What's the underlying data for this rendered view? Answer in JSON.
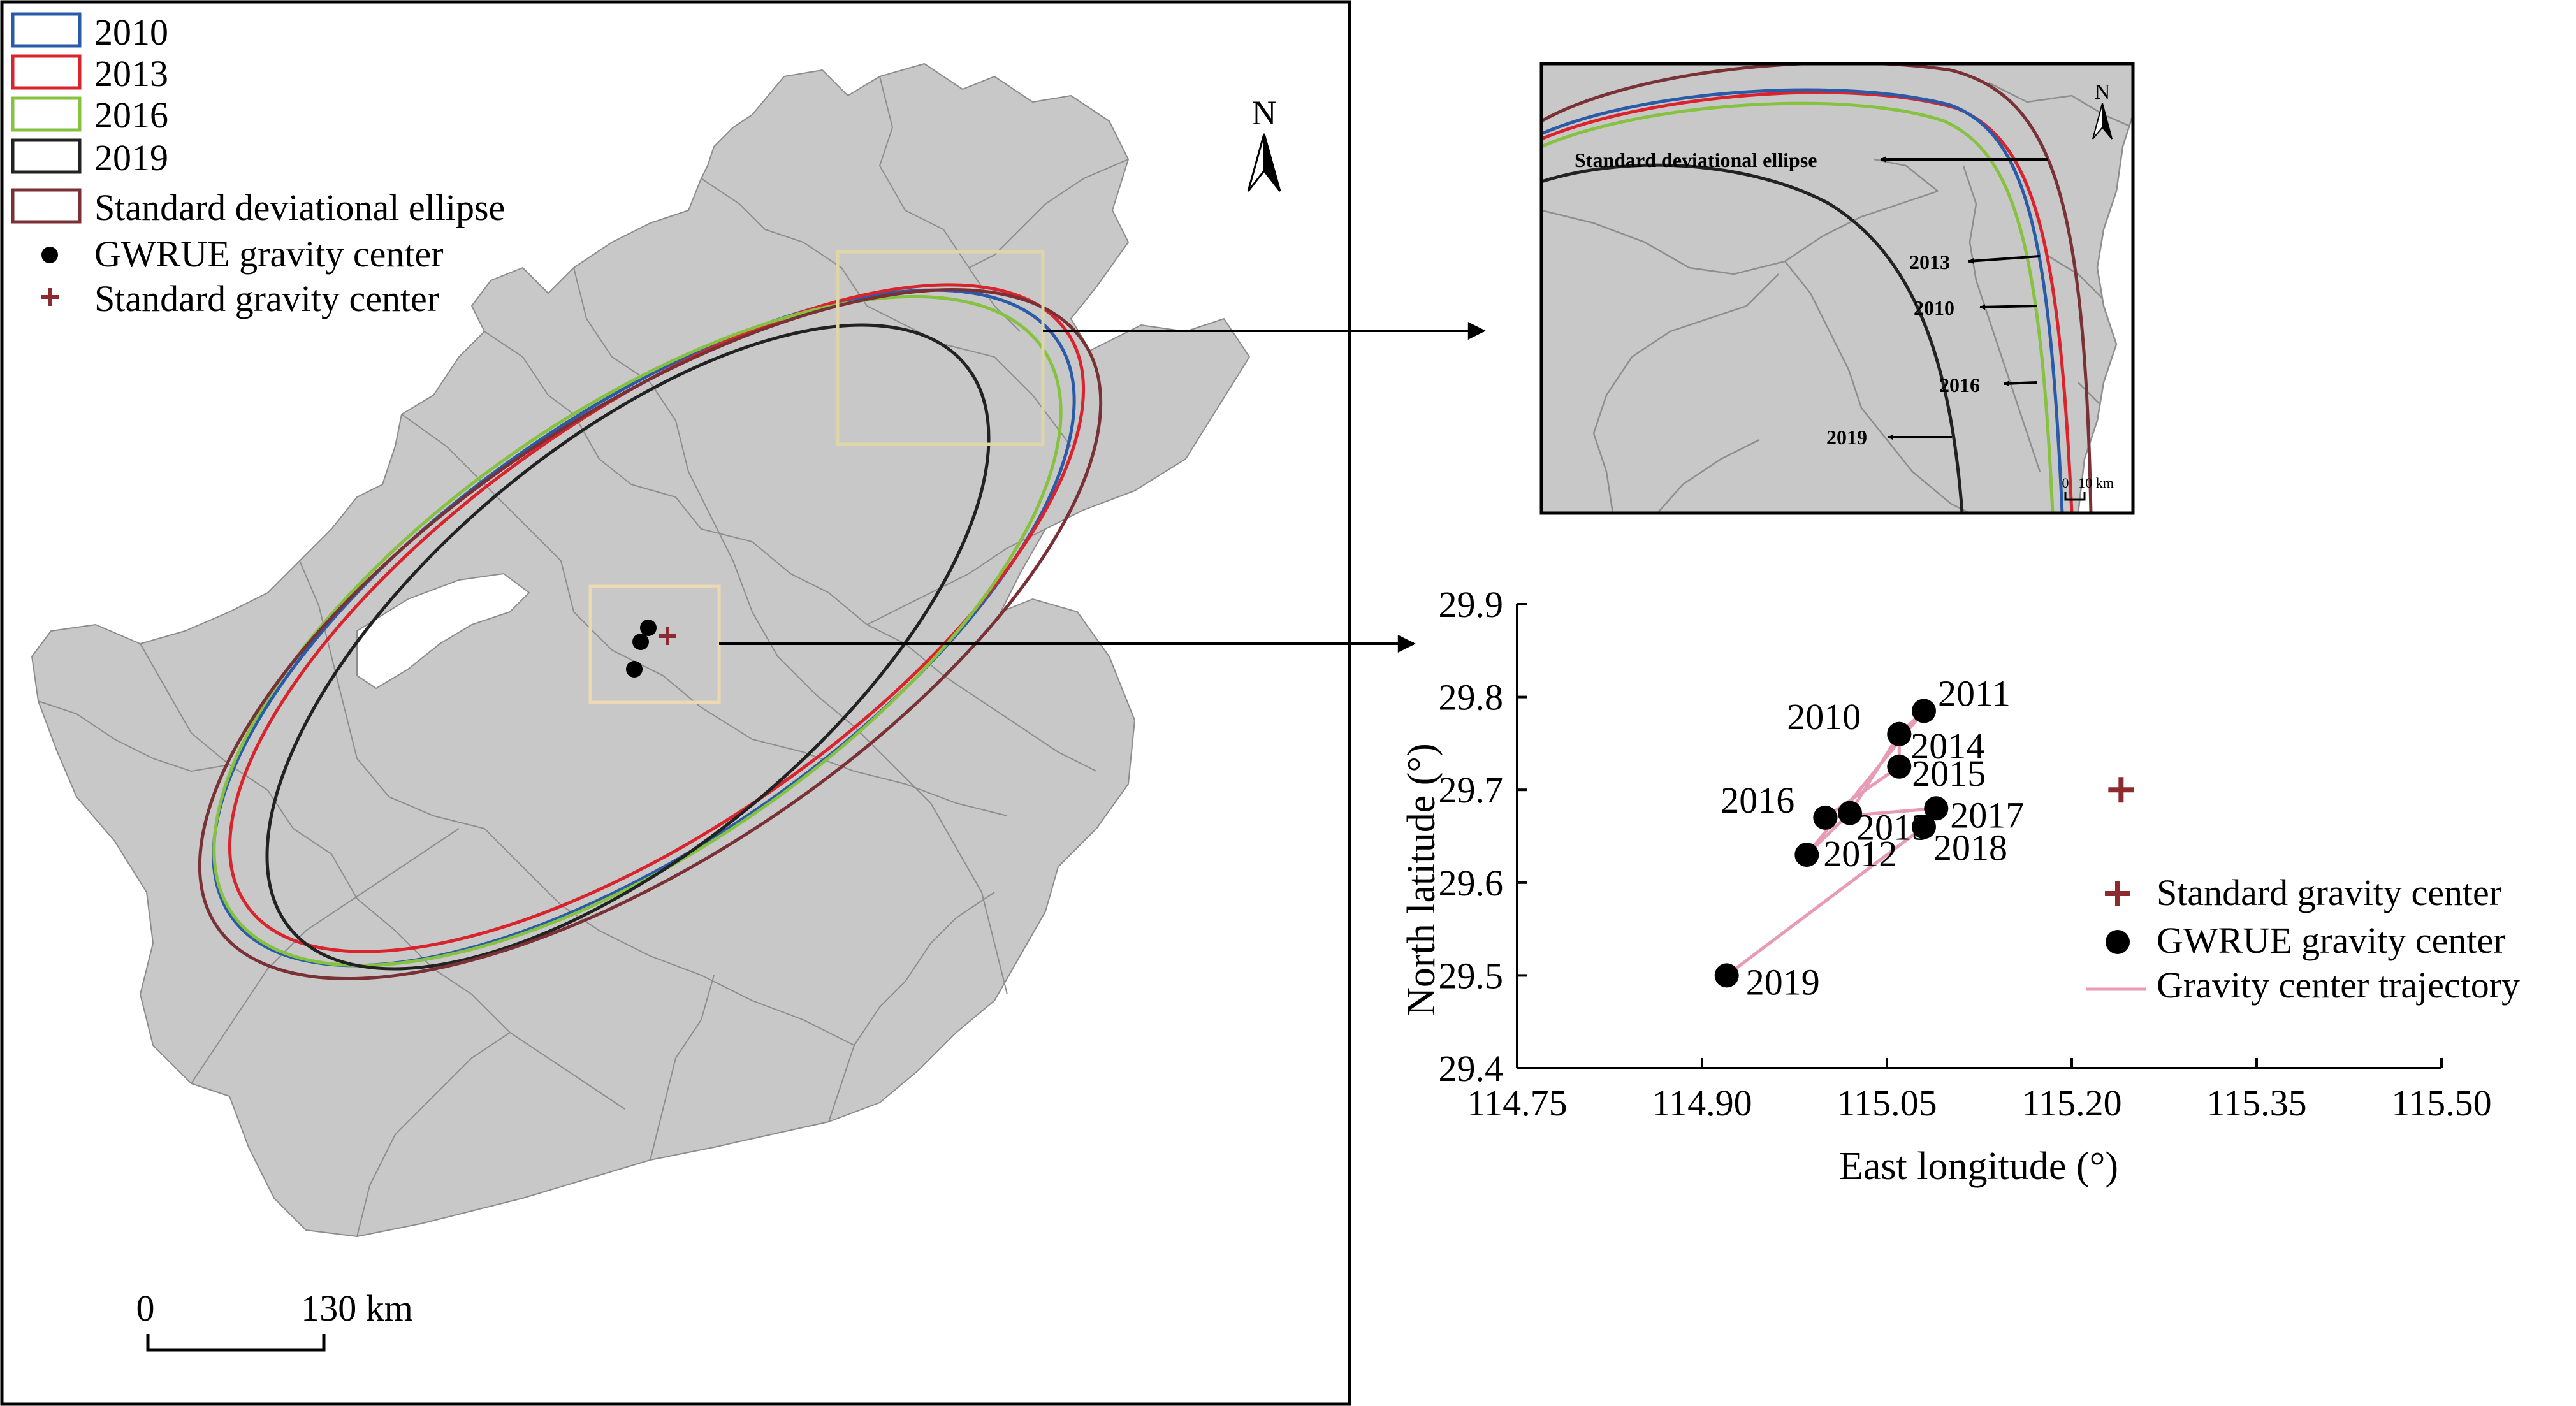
{
  "map": {
    "legend": {
      "y2010": "2010",
      "y2013": "2013",
      "y2016": "2016",
      "y2019": "2019",
      "sde": "Standard deviational ellipse",
      "gwrue": "GWRUE gravity center",
      "std": "Standard gravity center"
    },
    "north": "N",
    "scale": {
      "zero": "0",
      "distance": "130 km"
    },
    "colors": {
      "y2010": "#2a5ba8",
      "y2013": "#d9232d",
      "y2016": "#86c13f",
      "y2019": "#222222",
      "sde": "#7a3136",
      "std_marker": "#8c2b2f",
      "trajectory": "#e79bb5"
    }
  },
  "inset": {
    "north": "N",
    "sde_label": "Standard deviational ellipse",
    "labels": {
      "y2013": "2013",
      "y2010": "2010",
      "y2016": "2016",
      "y2019": "2019"
    },
    "scale": {
      "zero": "0",
      "distance": "10 km"
    }
  },
  "chart_data": {
    "type": "scatter",
    "xlabel": "East longitude (°)",
    "ylabel": "North latitude (°)",
    "xlim": [
      114.75,
      115.5
    ],
    "ylim": [
      29.4,
      29.9
    ],
    "xticks": [
      "114.75",
      "114.90",
      "115.05",
      "115.20",
      "115.35",
      "115.50"
    ],
    "yticks": [
      "29.4",
      "29.5",
      "29.6",
      "29.7",
      "29.8",
      "29.9"
    ],
    "points": [
      {
        "label": "2010",
        "x": 115.06,
        "y": 29.76
      },
      {
        "label": "2011",
        "x": 115.08,
        "y": 29.785
      },
      {
        "label": "2012",
        "x": 114.985,
        "y": 29.63
      },
      {
        "label": "2013",
        "x": 115.02,
        "y": 29.675
      },
      {
        "label": "2014",
        "x": 115.06,
        "y": 29.76
      },
      {
        "label": "2015",
        "x": 115.06,
        "y": 29.725
      },
      {
        "label": "2016",
        "x": 115.0,
        "y": 29.67
      },
      {
        "label": "2017",
        "x": 115.09,
        "y": 29.68
      },
      {
        "label": "2018",
        "x": 115.08,
        "y": 29.66
      },
      {
        "label": "2019",
        "x": 114.92,
        "y": 29.5
      }
    ],
    "trajectory_order": [
      "2010",
      "2011",
      "2012",
      "2013",
      "2014",
      "2015",
      "2016",
      "2017",
      "2018",
      "2019"
    ],
    "standard_center": {
      "x": 115.24,
      "y": 29.7
    },
    "legend": {
      "standard": "Standard gravity center",
      "gwrue": "GWRUE gravity center",
      "trajectory": "Gravity center trajectory"
    }
  }
}
